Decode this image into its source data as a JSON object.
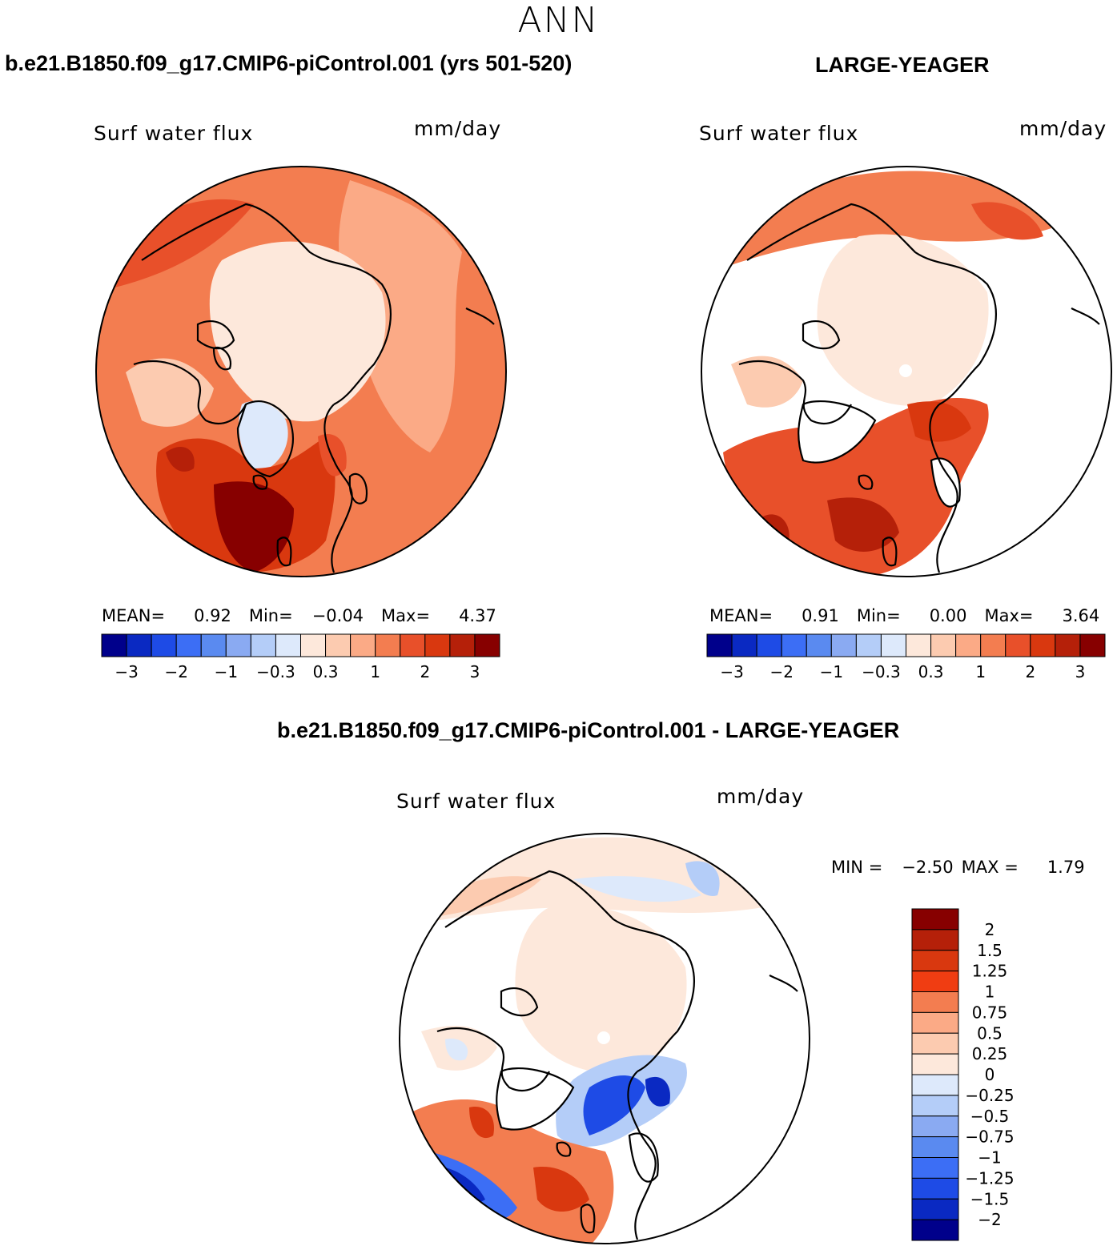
{
  "header": {
    "season": "ANN"
  },
  "panel_left": {
    "case_title": "b.e21.B1850.f09_g17.CMIP6-piControl.001 (yrs 501-520)",
    "variable": "Surf water flux",
    "units": "mm/day",
    "mean_label": "MEAN=",
    "mean_value": "0.92",
    "min_label": "Min=",
    "min_value": "−0.04",
    "max_label": "Max=",
    "max_value": "4.37"
  },
  "panel_right": {
    "case_title": "LARGE-YEAGER",
    "variable": "Surf water flux",
    "units": "mm/day",
    "mean_label": "MEAN=",
    "mean_value": "0.91",
    "min_label": "Min=",
    "min_value": "0.00",
    "max_label": "Max=",
    "max_value": "3.64"
  },
  "panel_diff": {
    "case_title": "b.e21.B1850.f09_g17.CMIP6-piControl.001 - LARGE-YEAGER",
    "variable": "Surf water flux",
    "units": "mm/day",
    "min_label": "MIN =",
    "min_value": "−2.50",
    "max_label": "MAX =",
    "max_value": "1.79"
  },
  "horizontal_colorbar": {
    "colors": [
      "#00008b",
      "#0a29c2",
      "#1e4be6",
      "#3c6ef5",
      "#5a8af0",
      "#8aaaf2",
      "#b4cdf8",
      "#dde9fb",
      "#fde8db",
      "#fccbb0",
      "#fbaa86",
      "#f37d50",
      "#e8502a",
      "#d9380f",
      "#b52009",
      "#870000"
    ],
    "tick_labels": [
      "−3",
      "−2",
      "−1",
      "−0.3",
      "0.3",
      "1",
      "2",
      "3"
    ]
  },
  "vertical_colorbar": {
    "colors_top_to_bottom": [
      "#870000",
      "#b52009",
      "#d9380f",
      "#f03d12",
      "#f37d50",
      "#fbaa86",
      "#fccbb0",
      "#fde8db",
      "#dde9fb",
      "#b4cdf8",
      "#8aaaf2",
      "#5a8af0",
      "#3c6ef5",
      "#1e4be6",
      "#0a29c2",
      "#00008b"
    ],
    "tick_labels": [
      "2",
      "1.5",
      "1.25",
      "1",
      "0.75",
      "0.5",
      "0.25",
      "0",
      "−0.25",
      "−0.5",
      "−0.75",
      "−1",
      "−1.25",
      "−1.5",
      "−2"
    ]
  }
}
